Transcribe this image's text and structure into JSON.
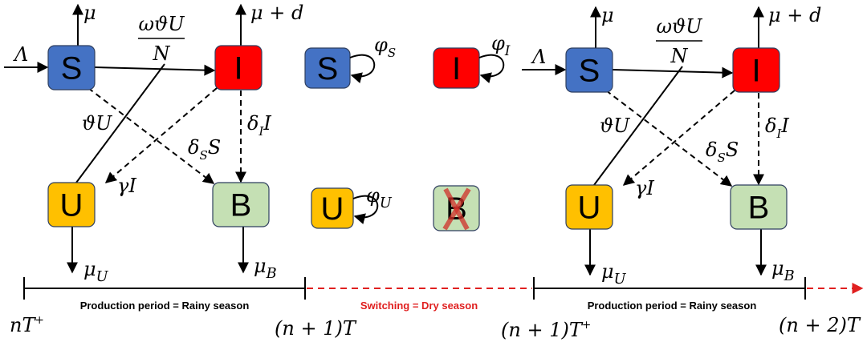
{
  "left_model": {
    "boxes": [
      "S",
      "I",
      "U",
      "B"
    ],
    "labels": {
      "mu": "μ",
      "mu_d": "μ + d",
      "lambda": "Λ",
      "force": {
        "numerator": "ωϑU",
        "denominator": "N"
      },
      "theta_u": "ϑU",
      "gamma_i": "γI",
      "delta_s": {
        "base": "δ",
        "sub": "S",
        "tail": "S"
      },
      "delta_i": {
        "base": "δ",
        "sub": "I",
        "tail": "I"
      },
      "mu_u": {
        "base": "μ",
        "sub": "U"
      },
      "mu_b": {
        "base": "μ",
        "sub": "B"
      }
    }
  },
  "dry_season": {
    "boxes": [
      "S",
      "I",
      "U",
      "B"
    ],
    "labels": {
      "phi_s": {
        "base": "φ",
        "sub": "S"
      },
      "phi_i": {
        "base": "φ",
        "sub": "I"
      },
      "phi_u": {
        "base": "φ",
        "sub": "U"
      }
    }
  },
  "right_model": {
    "boxes": [
      "S",
      "I",
      "U",
      "B"
    ],
    "labels": {
      "mu": "μ",
      "mu_d": "μ + d",
      "lambda": "Λ",
      "force": {
        "numerator": "ωϑU",
        "denominator": "N"
      },
      "theta_u": "ϑU",
      "gamma_i": "γI",
      "delta_s": {
        "base": "δ",
        "sub": "S",
        "tail": "S"
      },
      "delta_i": {
        "base": "δ",
        "sub": "I",
        "tail": "I"
      },
      "mu_u": {
        "base": "μ",
        "sub": "U"
      },
      "mu_b": {
        "base": "μ",
        "sub": "B"
      }
    }
  },
  "timeline": {
    "periods": [
      "Production period = Rainy season",
      "Switching = Dry season",
      "Production period = Rainy season"
    ],
    "time_marks": [
      {
        "base": "nT",
        "sup": "+"
      },
      "(n + 1)T",
      {
        "base": "(n + 1)T",
        "sup": "+"
      },
      "(n + 2)T"
    ]
  }
}
